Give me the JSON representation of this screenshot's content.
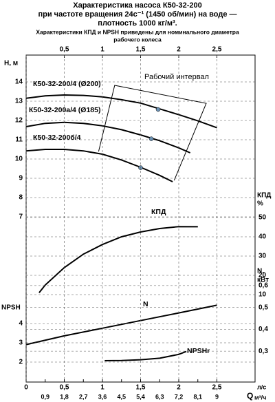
{
  "title": [
    "Характеристика насоса К50-32-200",
    "при частоте вращения 24с⁻¹ (1450 об/мин) на воде —",
    "плотность 1000 кг/м³."
  ],
  "subtitle": [
    "Характеристики КПД и NPSH приведены для номинального диаметра",
    "рабочего колеса"
  ],
  "chart_data": [
    {
      "type": "line",
      "ylabel": [
        "Н, м"
      ],
      "xlim": [
        0,
        3
      ],
      "ylim": [
        6.5,
        14.5
      ],
      "xticks": [
        {
          "value": 0.5,
          "label": "0,5"
        },
        1,
        {
          "value": 1.5,
          "label": "1,5"
        },
        2,
        {
          "value": 2.5,
          "label": "2,5"
        }
      ],
      "yticks": [
        7,
        8,
        9,
        10,
        11,
        12,
        13,
        14
      ],
      "grid": true,
      "series": [
        {
          "name": "К50-32-200/4 (Ø200)",
          "color": "#000000",
          "x": [
            0,
            0.25,
            0.5,
            0.75,
            1,
            1.25,
            1.5,
            1.75,
            2,
            2.25,
            2.5
          ],
          "values": [
            13.15,
            13.28,
            13.32,
            13.3,
            13.22,
            13.08,
            12.9,
            12.6,
            12.3,
            11.98,
            11.62
          ],
          "marker": {
            "x": 1.73,
            "y": 12.57
          }
        },
        {
          "name": "К50-32-200а/4 (Ø185)",
          "color": "#000000",
          "x": [
            0,
            0.25,
            0.5,
            0.75,
            1,
            1.25,
            1.5,
            1.75,
            2,
            2.15
          ],
          "values": [
            11.68,
            11.85,
            11.9,
            11.85,
            11.72,
            11.52,
            11.25,
            10.95,
            10.58,
            10.32
          ],
          "marker": {
            "x": 1.64,
            "y": 11.05
          }
        },
        {
          "name": "К50-32-200б/4",
          "color": "#000000",
          "x": [
            0,
            0.25,
            0.5,
            0.75,
            1,
            1.25,
            1.5,
            1.75,
            1.92
          ],
          "values": [
            10.42,
            10.5,
            10.5,
            10.42,
            10.25,
            9.95,
            9.57,
            9.15,
            8.82
          ],
          "marker": {
            "x": 1.5,
            "y": 9.55
          }
        }
      ],
      "interval": {
        "label": "Рабочий интервал",
        "x": [
          0.95,
          1.16,
          2.36,
          1.94
        ],
        "y": [
          10.39,
          13.82,
          12.89,
          8.89
        ]
      }
    },
    {
      "type": "line",
      "ylabel": [
        "КПД",
        "%"
      ],
      "xlim": [
        0,
        3
      ],
      "ylim": [
        5,
        55
      ],
      "yticks": [
        10,
        20,
        30,
        40,
        50
      ],
      "grid": true,
      "series": [
        {
          "name": "КПД",
          "color": "#000000",
          "x": [
            0.17,
            0.25,
            0.5,
            0.75,
            1,
            1.25,
            1.5,
            1.75,
            2,
            2.25
          ],
          "values": [
            11,
            15,
            24,
            31,
            36,
            40,
            42.5,
            44.3,
            45.3,
            45.2
          ]
        }
      ]
    },
    {
      "type": "line",
      "ylabel": [
        "N,",
        "кВт"
      ],
      "xlim": [
        0,
        3
      ],
      "ylim": [
        0.25,
        0.65
      ],
      "yticks": [
        {
          "value": 0.3,
          "label": "0,3"
        },
        {
          "value": 0.4,
          "label": "0,4"
        },
        {
          "value": 0.5,
          "label": "0,5"
        },
        {
          "value": 0.6,
          "label": "0,6"
        }
      ],
      "grid": true,
      "series": [
        {
          "name": "N",
          "color": "#000000",
          "x": [
            0,
            0.5,
            1,
            1.5,
            2,
            2.5
          ],
          "values": [
            0.33,
            0.37,
            0.405,
            0.44,
            0.475,
            0.51
          ]
        }
      ]
    },
    {
      "type": "line",
      "ylabel": [
        "NPSH"
      ],
      "xlabel": "Q",
      "xunit": "л/с",
      "x2unit": "м³/ч",
      "xlim": [
        0,
        3
      ],
      "ylim": [
        1.5,
        4.5
      ],
      "x2lim": [
        0,
        10.8
      ],
      "xticks": [
        0,
        {
          "value": 0.5,
          "label": "0,5"
        },
        1,
        {
          "value": 1.5,
          "label": "1,5"
        },
        2,
        {
          "value": 2.5,
          "label": "2,5"
        }
      ],
      "x2ticks": [
        {
          "value": 0.9,
          "label": "0,9"
        },
        {
          "value": 1.8,
          "label": "1,8"
        },
        {
          "value": 2.7,
          "label": "2,7"
        },
        {
          "value": 3.6,
          "label": "3,6"
        },
        {
          "value": 4.5,
          "label": "4,5"
        },
        {
          "value": 5.4,
          "label": "5,4"
        },
        {
          "value": 6.3,
          "label": "6,3"
        },
        {
          "value": 7.2,
          "label": "7,2"
        },
        {
          "value": 8.1,
          "label": "8,1"
        },
        9
      ],
      "yticks": [
        2,
        3,
        4
      ],
      "grid": true,
      "series": [
        {
          "name": "NPSHr",
          "color": "#000000",
          "x": [
            1.03,
            1.25,
            1.5,
            1.75,
            2,
            2.1
          ],
          "values": [
            2.07,
            2.08,
            2.12,
            2.2,
            2.4,
            2.55
          ]
        }
      ]
    }
  ]
}
